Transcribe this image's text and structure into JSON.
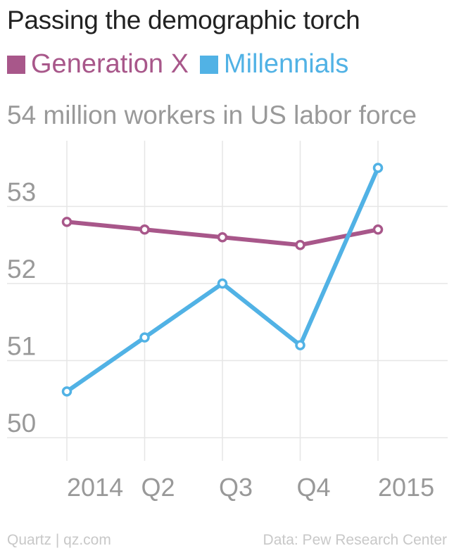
{
  "title": "Passing the demographic torch",
  "footer": {
    "source_left": "Quartz | qz.com",
    "source_right": "Data: Pew Research Center"
  },
  "colors": {
    "genx": "#a8578a",
    "millennials": "#51b2e5",
    "grid": "#e6e6e6",
    "axis_text": "#999999"
  },
  "chart_data": {
    "type": "line",
    "x": [
      "2014",
      "Q2",
      "Q3",
      "Q4",
      "2015"
    ],
    "ylim": [
      49.7,
      54.4
    ],
    "yticks": [
      50,
      51,
      52,
      53,
      54
    ],
    "ytick_labels": [
      "50",
      "51",
      "52",
      "53",
      "54 million workers in US labor force"
    ],
    "grid": true,
    "legend": "top-left",
    "series": [
      {
        "name": "Generation X",
        "values": [
          52.8,
          52.7,
          52.6,
          52.5,
          52.7
        ],
        "color": "#a8578a"
      },
      {
        "name": "Millennials",
        "values": [
          50.6,
          51.3,
          52.0,
          51.2,
          53.5
        ],
        "color": "#51b2e5"
      }
    ]
  }
}
